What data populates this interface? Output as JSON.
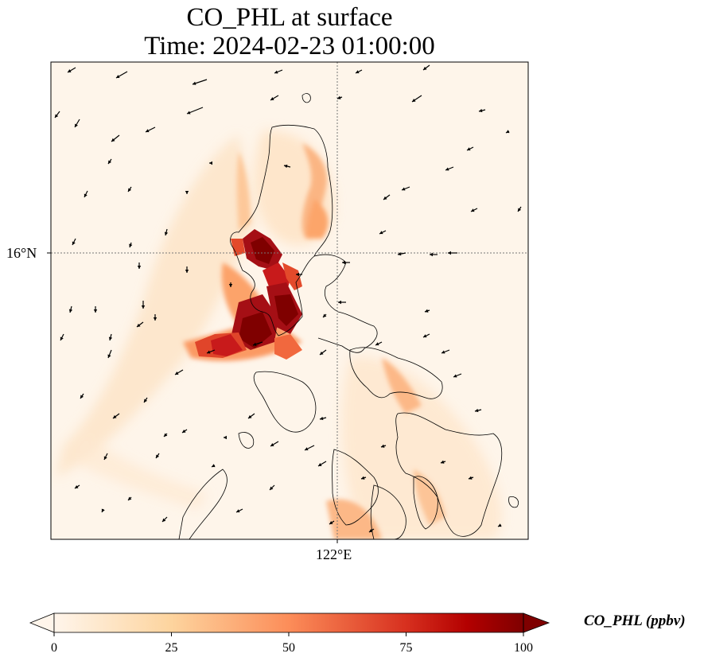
{
  "title": {
    "line1": "CO_PHL at surface",
    "line2": "Time: 2024-02-23 01:00:00"
  },
  "map": {
    "gridlines": {
      "latitude": "16°N",
      "longitude": "122°E"
    },
    "field_variable": "CO_PHL",
    "colormap": [
      "#fff5eb",
      "#fdd49e",
      "#fc8d59",
      "#d7301f",
      "#b30000",
      "#7f0000"
    ],
    "overlay": "wind vectors",
    "coastline_color": "#000000"
  },
  "colorbar": {
    "label": "CO_PHL (ppbv)",
    "ticks": [
      "0",
      "25",
      "50",
      "75",
      "100"
    ],
    "range": [
      0,
      100
    ],
    "extend": "both"
  }
}
